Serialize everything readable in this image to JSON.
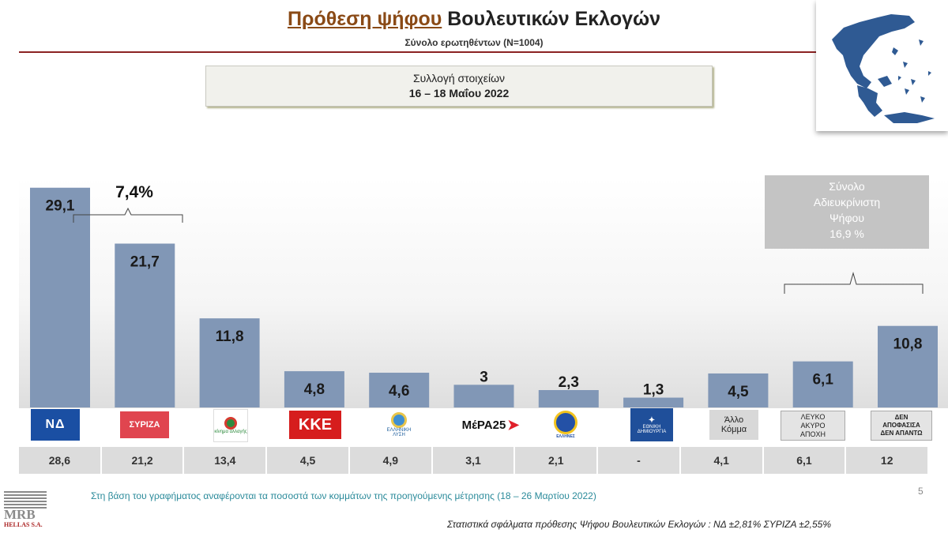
{
  "header": {
    "title_part1": "Πρόθεση ψήφου",
    "title_part2": "Βουλευτικών Εκλογών",
    "subtitle": "Σύνολο ερωτηθέντων (N=1004)"
  },
  "collection": {
    "label": "Συλλογή στοιχείων",
    "dates": "16 – 18 Μαΐου 2022"
  },
  "chart_data": {
    "type": "bar",
    "categories": [
      "ΝΔ",
      "ΣΥΡΙΖΑ",
      "ΚΙΝΑΛ",
      "ΚΚΕ",
      "ΕΛΛΗΝΙΚΗ ΛΥΣΗ",
      "ΜέΡΑ25",
      "ΕΛΛΗΝΕΣ",
      "ΕΘΝΙΚΗ ΔΗΜΙΟΥΡΓΙΑ",
      "Άλλο Κόμμα",
      "ΛΕΥΚΟ ΑΚΥΡΟ ΑΠΟΧΗ",
      "ΔΕΝ ΑΠΟΦΑΣΙΣΑ ΔΕΝ ΑΠΑΝΤΩ"
    ],
    "values": [
      29.1,
      21.7,
      11.8,
      4.8,
      4.6,
      3,
      2.3,
      1.3,
      4.5,
      6.1,
      10.8
    ],
    "value_labels": [
      "29,1",
      "21,7",
      "11,8",
      "4,8",
      "4,6",
      "3",
      "2,3",
      "1,3",
      "4,5",
      "6,1",
      "10,8"
    ],
    "previous_labels": [
      "28,6",
      "21,2",
      "13,4",
      "4,5",
      "4,9",
      "3,1",
      "2,1",
      "-",
      "4,1",
      "6,1",
      "12"
    ],
    "ylim": [
      0,
      32
    ],
    "bar_color": "#8197b6",
    "difference_label": "7,4%",
    "undecided_total": [
      "Σύνολο",
      "Αδιευκρίνιστη",
      "Ψήφου",
      "16,9 %"
    ]
  },
  "logos": {
    "nd": "ΝΔ",
    "syriza": "ΣΥΡΙΖΑ",
    "kinal": "κίνημα αλλαγής",
    "kke": "ΚΚΕ",
    "elliniki_lysi": "ΕΛΛΗΝΙΚΗ ΛΥΣΗ",
    "mera25": "ΜέΡΑ25",
    "ellines": "ΕΛΛΗΝΕΣ",
    "ethniki_dimiourgia": "ΕΘΝΙΚΗ ΔΗΜΙΟΥΡΓΙΑ",
    "allo_line1": "Άλλο",
    "allo_line2": "Κόμμα",
    "lefko_line1": "ΛΕΥΚΟ",
    "lefko_line2": "ΑΚΥΡΟ",
    "lefko_line3": "ΑΠΟΧΗ",
    "den_line1": "ΔΕΝ",
    "den_line2": "ΑΠΟΦΑΣΙΣΑ",
    "den_line3": "ΔΕΝ ΑΠΑΝΤΩ"
  },
  "footer": {
    "footnote": "Στη βάση του γραφήματος αναφέρονται τα ποσοστά των κομμάτων της προηγούμενης μέτρησης (18 – 26 Μαρτίου 2022)",
    "page_number": "5",
    "errors": "Στατιστικά  σφάλματα πρόθεσης Ψήφου Βουλευτικών Εκλογών :   ΝΔ ±2,81% ΣΥΡΙΖΑ ±2,55%",
    "brand": "MRB",
    "brand_sub": "HELLAS S.A."
  }
}
